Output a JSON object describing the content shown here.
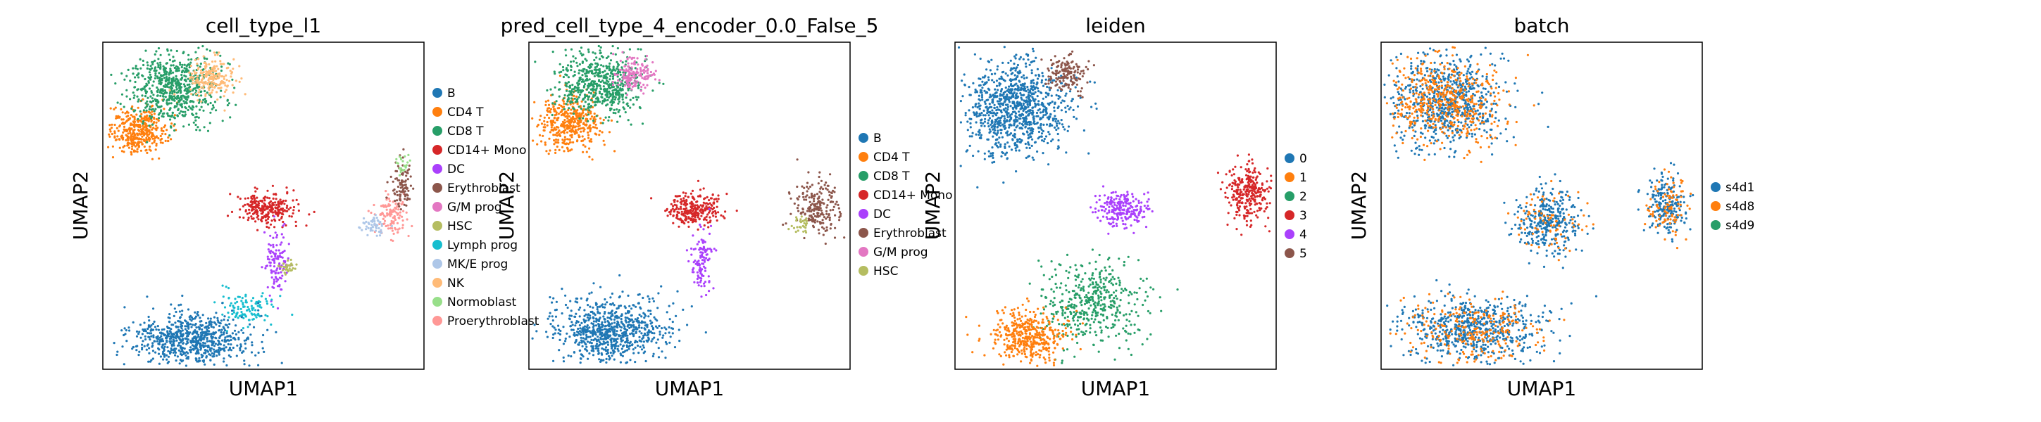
{
  "chart_data": [
    {
      "type": "scatter",
      "title": "cell_type_l1",
      "xlabel": "UMAP1",
      "ylabel": "UMAP2",
      "grid": false,
      "legend_position": "right",
      "legend": [
        {
          "label": "B",
          "color": "#1f77b4"
        },
        {
          "label": "CD4 T",
          "color": "#ff7f0e"
        },
        {
          "label": "CD8 T",
          "color": "#279e68"
        },
        {
          "label": "CD14+ Mono",
          "color": "#d62728"
        },
        {
          "label": "DC",
          "color": "#aa40fc"
        },
        {
          "label": "Erythroblast",
          "color": "#8c564b"
        },
        {
          "label": "G/M prog",
          "color": "#e377c2"
        },
        {
          "label": "HSC",
          "color": "#b5bd61"
        },
        {
          "label": "Lymph prog",
          "color": "#17becf"
        },
        {
          "label": "MK/E prog",
          "color": "#aec7e8"
        },
        {
          "label": "NK",
          "color": "#ffbb78"
        },
        {
          "label": "Normoblast",
          "color": "#98df8a"
        },
        {
          "label": "Proerythroblast",
          "color": "#ff9896"
        }
      ],
      "clusters": [
        {
          "label": "CD4 T",
          "cx": 0.11,
          "cy": 0.73,
          "sx": 0.045,
          "sy": 0.035,
          "n": 380
        },
        {
          "label": "CD8 T",
          "cx": 0.22,
          "cy": 0.86,
          "sx": 0.07,
          "sy": 0.055,
          "n": 650
        },
        {
          "label": "NK",
          "cx": 0.34,
          "cy": 0.89,
          "sx": 0.035,
          "sy": 0.03,
          "n": 200
        },
        {
          "label": "CD14+ Mono",
          "cx": 0.51,
          "cy": 0.49,
          "sx": 0.045,
          "sy": 0.025,
          "n": 260
        },
        {
          "label": "DC",
          "cx": 0.54,
          "cy": 0.33,
          "sx": 0.018,
          "sy": 0.05,
          "n": 110
        },
        {
          "label": "HSC",
          "cx": 0.57,
          "cy": 0.31,
          "sx": 0.015,
          "sy": 0.012,
          "n": 30
        },
        {
          "label": "Lymph prog",
          "cx": 0.45,
          "cy": 0.18,
          "sx": 0.04,
          "sy": 0.025,
          "n": 110
        },
        {
          "label": "B",
          "cx": 0.27,
          "cy": 0.09,
          "sx": 0.09,
          "sy": 0.04,
          "n": 720
        },
        {
          "label": "Proerythroblast",
          "cx": 0.9,
          "cy": 0.47,
          "sx": 0.025,
          "sy": 0.03,
          "n": 120
        },
        {
          "label": "Erythroblast",
          "cx": 0.93,
          "cy": 0.56,
          "sx": 0.015,
          "sy": 0.04,
          "n": 90
        },
        {
          "label": "MK/E prog",
          "cx": 0.84,
          "cy": 0.44,
          "sx": 0.02,
          "sy": 0.015,
          "n": 50
        },
        {
          "label": "Normoblast",
          "cx": 0.93,
          "cy": 0.63,
          "sx": 0.01,
          "sy": 0.015,
          "n": 25
        }
      ]
    },
    {
      "type": "scatter",
      "title": "pred_cell_type_4_encoder_0.0_False_5",
      "xlabel": "UMAP1",
      "ylabel": "UMAP2",
      "grid": false,
      "legend_position": "right",
      "legend": [
        {
          "label": "B",
          "color": "#1f77b4"
        },
        {
          "label": "CD4 T",
          "color": "#ff7f0e"
        },
        {
          "label": "CD8 T",
          "color": "#279e68"
        },
        {
          "label": "CD14+ Mono",
          "color": "#d62728"
        },
        {
          "label": "DC",
          "color": "#aa40fc"
        },
        {
          "label": "Erythroblast",
          "color": "#8c564b"
        },
        {
          "label": "G/M prog",
          "color": "#e377c2"
        },
        {
          "label": "HSC",
          "color": "#b5bd61"
        }
      ],
      "clusters": [
        {
          "label": "CD4 T",
          "cx": 0.12,
          "cy": 0.75,
          "sx": 0.05,
          "sy": 0.04,
          "n": 400
        },
        {
          "label": "CD8 T",
          "cx": 0.22,
          "cy": 0.87,
          "sx": 0.07,
          "sy": 0.05,
          "n": 600
        },
        {
          "label": "G/M prog",
          "cx": 0.33,
          "cy": 0.9,
          "sx": 0.03,
          "sy": 0.025,
          "n": 150
        },
        {
          "label": "CD14+ Mono",
          "cx": 0.51,
          "cy": 0.49,
          "sx": 0.045,
          "sy": 0.025,
          "n": 260
        },
        {
          "label": "DC",
          "cx": 0.54,
          "cy": 0.33,
          "sx": 0.018,
          "sy": 0.05,
          "n": 110
        },
        {
          "label": "B",
          "cx": 0.25,
          "cy": 0.12,
          "sx": 0.09,
          "sy": 0.05,
          "n": 750
        },
        {
          "label": "Erythroblast",
          "cx": 0.9,
          "cy": 0.5,
          "sx": 0.035,
          "sy": 0.045,
          "n": 210
        },
        {
          "label": "HSC",
          "cx": 0.85,
          "cy": 0.44,
          "sx": 0.015,
          "sy": 0.012,
          "n": 30
        }
      ]
    },
    {
      "type": "scatter",
      "title": "leiden",
      "xlabel": "UMAP1",
      "ylabel": "UMAP2",
      "grid": false,
      "legend_position": "right",
      "legend": [
        {
          "label": "0",
          "color": "#1f77b4"
        },
        {
          "label": "1",
          "color": "#ff7f0e"
        },
        {
          "label": "2",
          "color": "#279e68"
        },
        {
          "label": "3",
          "color": "#d62728"
        },
        {
          "label": "4",
          "color": "#aa40fc"
        },
        {
          "label": "5",
          "color": "#8c564b"
        }
      ],
      "clusters": [
        {
          "label": "0",
          "cx": 0.19,
          "cy": 0.8,
          "sx": 0.08,
          "sy": 0.07,
          "n": 950
        },
        {
          "label": "5",
          "cx": 0.35,
          "cy": 0.9,
          "sx": 0.03,
          "sy": 0.03,
          "n": 150
        },
        {
          "label": "4",
          "cx": 0.52,
          "cy": 0.49,
          "sx": 0.04,
          "sy": 0.025,
          "n": 230
        },
        {
          "label": "2",
          "cx": 0.43,
          "cy": 0.2,
          "sx": 0.08,
          "sy": 0.06,
          "n": 450
        },
        {
          "label": "1",
          "cx": 0.23,
          "cy": 0.1,
          "sx": 0.06,
          "sy": 0.04,
          "n": 420
        },
        {
          "label": "3",
          "cx": 0.91,
          "cy": 0.54,
          "sx": 0.03,
          "sy": 0.045,
          "n": 280
        }
      ]
    },
    {
      "type": "scatter",
      "title": "batch",
      "xlabel": "UMAP1",
      "ylabel": "UMAP2",
      "grid": false,
      "legend_position": "right",
      "legend": [
        {
          "label": "s4d1",
          "color": "#1f77b4"
        },
        {
          "label": "s4d8",
          "color": "#ff7f0e"
        },
        {
          "label": "s4d9",
          "color": "#279e68"
        }
      ],
      "clusters": [
        {
          "label": "s4d1",
          "cx": 0.2,
          "cy": 0.82,
          "sx": 0.09,
          "sy": 0.07,
          "n": 700
        },
        {
          "label": "s4d8",
          "cx": 0.2,
          "cy": 0.82,
          "sx": 0.09,
          "sy": 0.07,
          "n": 500
        },
        {
          "label": "s4d1",
          "cx": 0.52,
          "cy": 0.45,
          "sx": 0.05,
          "sy": 0.05,
          "n": 320
        },
        {
          "label": "s4d8",
          "cx": 0.52,
          "cy": 0.45,
          "sx": 0.05,
          "sy": 0.05,
          "n": 80
        },
        {
          "label": "s4d1",
          "cx": 0.28,
          "cy": 0.12,
          "sx": 0.11,
          "sy": 0.05,
          "n": 650
        },
        {
          "label": "s4d8",
          "cx": 0.28,
          "cy": 0.12,
          "sx": 0.11,
          "sy": 0.05,
          "n": 250
        },
        {
          "label": "s4d1",
          "cx": 0.89,
          "cy": 0.5,
          "sx": 0.03,
          "sy": 0.05,
          "n": 200
        },
        {
          "label": "s4d8",
          "cx": 0.89,
          "cy": 0.5,
          "sx": 0.03,
          "sy": 0.05,
          "n": 90
        }
      ]
    }
  ]
}
